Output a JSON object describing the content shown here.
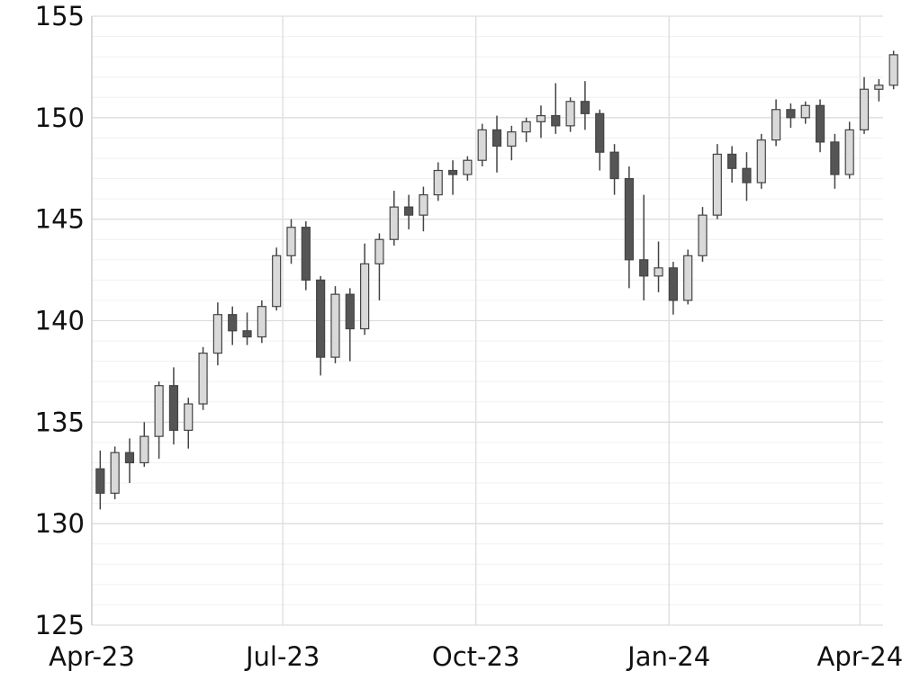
{
  "chart_data": {
    "type": "candlestick",
    "title": "",
    "xlabel": "",
    "ylabel": "",
    "ylim": [
      125,
      155
    ],
    "xlim": [
      "2023-04-01",
      "2024-04-12"
    ],
    "y_ticks": [
      125,
      130,
      135,
      140,
      145,
      150,
      155
    ],
    "x_ticks": [
      {
        "date": "2023-04-01",
        "label": "Apr-23"
      },
      {
        "date": "2023-07-01",
        "label": "Jul-23"
      },
      {
        "date": "2023-10-01",
        "label": "Oct-23"
      },
      {
        "date": "2024-01-01",
        "label": "Jan-24"
      },
      {
        "date": "2024-04-01",
        "label": "Apr-24"
      }
    ],
    "grid": {
      "major": true,
      "minor_y_step": 1
    },
    "colors": {
      "up_fill": "#d9d9d9",
      "down_fill": "#555555",
      "outline": "#444444",
      "grid_major": "#dddddd",
      "grid_minor": "#f0f0f0"
    },
    "candle_period": "weekly (approximated from daily candles)",
    "start_date": "2023-04-03",
    "ohlc": [
      [
        132.7,
        133.6,
        130.7,
        131.5
      ],
      [
        131.5,
        133.8,
        131.2,
        133.5
      ],
      [
        133.5,
        134.2,
        132.0,
        133.0
      ],
      [
        133.0,
        135.0,
        132.8,
        134.3
      ],
      [
        134.3,
        137.0,
        133.2,
        136.8
      ],
      [
        136.8,
        137.7,
        133.9,
        134.6
      ],
      [
        134.6,
        136.2,
        133.7,
        135.9
      ],
      [
        135.9,
        138.7,
        135.6,
        138.4
      ],
      [
        138.4,
        140.9,
        137.8,
        140.3
      ],
      [
        140.3,
        140.7,
        138.8,
        139.5
      ],
      [
        139.5,
        140.4,
        138.8,
        139.2
      ],
      [
        139.2,
        141.0,
        138.9,
        140.7
      ],
      [
        140.7,
        143.6,
        140.5,
        143.2
      ],
      [
        143.2,
        145.0,
        142.8,
        144.6
      ],
      [
        144.6,
        144.9,
        141.5,
        142.0
      ],
      [
        142.0,
        142.2,
        137.3,
        138.2
      ],
      [
        138.2,
        141.7,
        137.9,
        141.3
      ],
      [
        141.3,
        141.6,
        138.0,
        139.6
      ],
      [
        139.6,
        143.8,
        139.3,
        142.8
      ],
      [
        142.8,
        144.3,
        141.0,
        144.0
      ],
      [
        144.0,
        146.4,
        143.7,
        145.6
      ],
      [
        145.6,
        146.2,
        144.5,
        145.2
      ],
      [
        145.2,
        146.6,
        144.4,
        146.2
      ],
      [
        146.2,
        147.8,
        145.9,
        147.4
      ],
      [
        147.4,
        147.9,
        146.2,
        147.2
      ],
      [
        147.2,
        148.1,
        146.9,
        147.9
      ],
      [
        147.9,
        149.7,
        147.6,
        149.4
      ],
      [
        149.4,
        150.1,
        147.3,
        148.6
      ],
      [
        148.6,
        149.6,
        147.9,
        149.3
      ],
      [
        149.3,
        150.0,
        148.8,
        149.8
      ],
      [
        149.8,
        150.6,
        149.0,
        150.1
      ],
      [
        150.1,
        151.7,
        149.2,
        149.6
      ],
      [
        149.6,
        151.0,
        149.3,
        150.8
      ],
      [
        150.8,
        151.8,
        149.4,
        150.2
      ],
      [
        150.2,
        150.4,
        147.4,
        148.3
      ],
      [
        148.3,
        148.7,
        146.2,
        147.0
      ],
      [
        147.0,
        147.6,
        141.6,
        143.0
      ],
      [
        143.0,
        146.2,
        141.0,
        142.2
      ],
      [
        142.2,
        143.9,
        141.4,
        142.6
      ],
      [
        142.6,
        142.9,
        140.3,
        141.0
      ],
      [
        141.0,
        143.5,
        140.8,
        143.2
      ],
      [
        143.2,
        145.6,
        142.9,
        145.2
      ],
      [
        145.2,
        148.7,
        145.0,
        148.2
      ],
      [
        148.2,
        148.6,
        146.8,
        147.5
      ],
      [
        147.5,
        148.3,
        145.9,
        146.8
      ],
      [
        146.8,
        149.2,
        146.5,
        148.9
      ],
      [
        148.9,
        150.9,
        148.6,
        150.4
      ],
      [
        150.4,
        150.7,
        149.5,
        150.0
      ],
      [
        150.0,
        150.8,
        149.7,
        150.6
      ],
      [
        150.6,
        150.9,
        148.3,
        148.8
      ],
      [
        148.8,
        149.2,
        146.5,
        147.2
      ],
      [
        147.2,
        149.8,
        147.0,
        149.4
      ],
      [
        149.4,
        152.0,
        149.2,
        151.4
      ],
      [
        151.4,
        151.9,
        150.8,
        151.6
      ],
      [
        151.6,
        153.3,
        151.4,
        153.1
      ]
    ]
  }
}
